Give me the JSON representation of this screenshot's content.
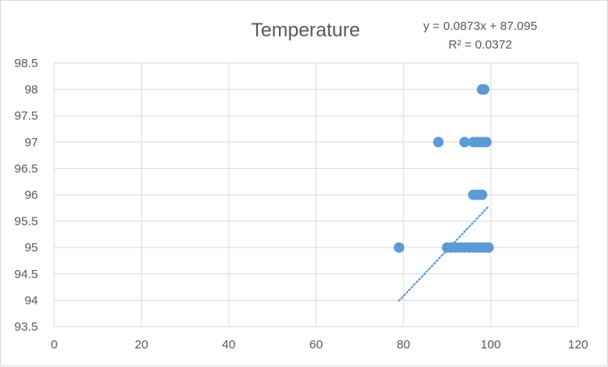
{
  "chart_data": {
    "type": "scatter",
    "title": "Temperature",
    "xlabel": "",
    "ylabel": "",
    "xlim": [
      0,
      120
    ],
    "ylim": [
      93.5,
      98.5
    ],
    "x_ticks": [
      0,
      20,
      40,
      60,
      80,
      100,
      120
    ],
    "y_ticks": [
      93.5,
      94,
      94.5,
      95,
      95.5,
      96,
      96.5,
      97,
      97.5,
      98,
      98.5
    ],
    "x_tick_labels": [
      "0",
      "20",
      "40",
      "60",
      "80",
      "100",
      "120"
    ],
    "y_tick_labels": [
      "93.5",
      "94",
      "94.5",
      "95",
      "95.5",
      "96",
      "96.5",
      "97",
      "97.5",
      "98",
      "98.5"
    ],
    "grid": true,
    "legend": "none",
    "marker_color": "#5b9bd5",
    "trendline_color": "#5b9bd5",
    "series": [
      {
        "points": [
          [
            79,
            95
          ],
          [
            90,
            95
          ],
          [
            91,
            95
          ],
          [
            92,
            95
          ],
          [
            93,
            95
          ],
          [
            94,
            95
          ],
          [
            95,
            95
          ],
          [
            96,
            95
          ],
          [
            97,
            95
          ],
          [
            98,
            95
          ],
          [
            99,
            95
          ],
          [
            99.5,
            95
          ],
          [
            96,
            96
          ],
          [
            97,
            96
          ],
          [
            98,
            96
          ],
          [
            88,
            97
          ],
          [
            94,
            97
          ],
          [
            96,
            97
          ],
          [
            97,
            97
          ],
          [
            98,
            97
          ],
          [
            99,
            97
          ],
          [
            98,
            98
          ],
          [
            98.5,
            98
          ]
        ]
      }
    ],
    "trendline": {
      "type": "linear",
      "slope": 0.0873,
      "intercept": 87.095,
      "x_range": [
        79,
        99.5
      ],
      "style": "dotted",
      "equation_label": "y = 0.0873x + 87.095",
      "r2_label": "R² = 0.0372"
    }
  }
}
